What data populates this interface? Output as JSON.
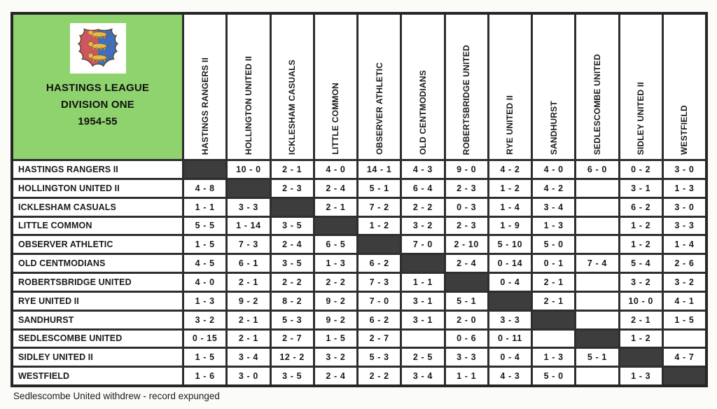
{
  "title": {
    "line1": "HASTINGS LEAGUE",
    "line2": "DIVISION ONE",
    "line3": "1954-55"
  },
  "footer_note": "Sedlescombe United withdrew - record expunged",
  "icons": {
    "crest": "hastings-coat-of-arms"
  },
  "colors": {
    "header_green": "#8fd36e",
    "diagonal_dark": "#3d3d3d",
    "grid_line": "#2e2e2e",
    "crest_red": "#cf5560",
    "crest_blue": "#3f6fbd",
    "crest_gold": "#e7b94c"
  },
  "teams": [
    "HASTINGS RANGERS II",
    "HOLLINGTON UNITED II",
    "ICKLESHAM CASUALS",
    "LITTLE COMMON",
    "OBSERVER ATHLETIC",
    "OLD CENTMODIANS",
    "ROBERTSBRIDGE UNITED",
    "RYE UNITED II",
    "SANDHURST",
    "SEDLESCOMBE UNITED",
    "SIDLEY UNITED II",
    "WESTFIELD"
  ],
  "results": [
    [
      "X",
      "10 - 0",
      "2 - 1",
      "4 - 0",
      "14 - 1",
      "4 - 3",
      "9 - 0",
      "4 - 2",
      "4 - 0",
      "6 - 0",
      "0 - 2",
      "3 - 0"
    ],
    [
      "4 - 8",
      "X",
      "2 - 3",
      "2 - 4",
      "5 - 1",
      "6 - 4",
      "2 - 3",
      "1 - 2",
      "4 - 2",
      "",
      "3 - 1",
      "1 - 3"
    ],
    [
      "1 - 1",
      "3 - 3",
      "X",
      "2 - 1",
      "7 - 2",
      "2 - 2",
      "0 - 3",
      "1 - 4",
      "3 - 4",
      "",
      "6 - 2",
      "3 - 0"
    ],
    [
      "5 - 5",
      "1 - 14",
      "3 - 5",
      "X",
      "1 - 2",
      "3 - 2",
      "2 - 3",
      "1 - 9",
      "1 - 3",
      "",
      "1 - 2",
      "3 - 3"
    ],
    [
      "1 - 5",
      "7 - 3",
      "2 - 4",
      "6 - 5",
      "X",
      "7 - 0",
      "2 - 10",
      "5 - 10",
      "5 - 0",
      "",
      "1 - 2",
      "1 - 4"
    ],
    [
      "4 - 5",
      "6 - 1",
      "3 - 5",
      "1 - 3",
      "6 - 2",
      "X",
      "2 - 4",
      "0 - 14",
      "0 - 1",
      "7 - 4",
      "5 - 4",
      "2 - 6"
    ],
    [
      "4 - 0",
      "2 - 1",
      "2 - 2",
      "2 - 2",
      "7 - 3",
      "1 - 1",
      "X",
      "0 - 4",
      "2 - 1",
      "",
      "3 - 2",
      "3 - 2"
    ],
    [
      "1 - 3",
      "9 - 2",
      "8 - 2",
      "9 - 2",
      "7 - 0",
      "3 - 1",
      "5 - 1",
      "X",
      "2 - 1",
      "",
      "10 - 0",
      "4 - 1"
    ],
    [
      "3 - 2",
      "2 - 1",
      "5 - 3",
      "9 - 2",
      "6 - 2",
      "3 - 1",
      "2 - 0",
      "3 - 3",
      "X",
      "",
      "2 - 1",
      "1 - 5"
    ],
    [
      "0 - 15",
      "2 - 1",
      "2 - 7",
      "1 - 5",
      "2 - 7",
      "",
      "0 - 6",
      "0 - 11",
      "",
      "X",
      "1 - 2",
      ""
    ],
    [
      "1 - 5",
      "3 - 4",
      "12 - 2",
      "3 - 2",
      "5 - 3",
      "2 - 5",
      "3 - 3",
      "0 - 4",
      "1 - 3",
      "5 - 1",
      "X",
      "4 - 7"
    ],
    [
      "1 - 6",
      "3 - 0",
      "3 - 5",
      "2 - 4",
      "2 - 2",
      "3 - 4",
      "1 - 1",
      "4 - 3",
      "5 - 0",
      "",
      "1 - 3",
      "X"
    ]
  ]
}
